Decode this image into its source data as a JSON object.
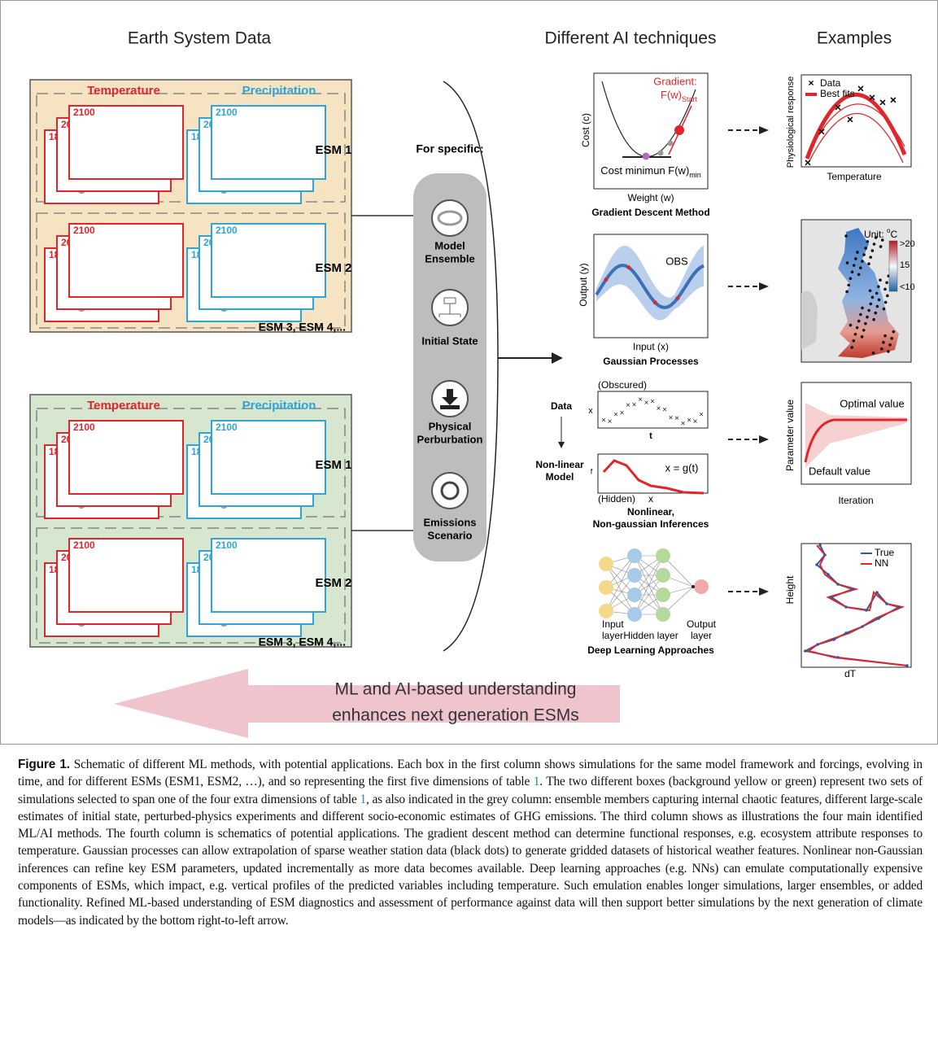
{
  "column_titles": [
    "Earth System Data",
    "Different AI techniques",
    "Examples"
  ],
  "data_boxes": [
    {
      "variables": [
        "Temperature",
        "Precipitation"
      ],
      "rows": [
        {
          "esm": "ESM 1",
          "years": [
            [
              "2100",
              "2020",
              "1850"
            ],
            [
              "2100",
              "2020",
              "1850"
            ]
          ]
        },
        {
          "esm": "ESM 2",
          "years": [
            [
              "2100",
              "2020",
              "1850"
            ],
            [
              "2100",
              "2020",
              "1850"
            ]
          ]
        }
      ],
      "more": "ESM 3, ESM 4,..."
    },
    {
      "variables": [
        "Temperature",
        "Precipitation"
      ],
      "rows": [
        {
          "esm": "ESM 1",
          "years": [
            [
              "2100",
              "2020",
              "1850"
            ],
            [
              "2100",
              "2020",
              "1850"
            ]
          ]
        },
        {
          "esm": "ESM 2",
          "years": [
            [
              "2100",
              "2020",
              "1850"
            ],
            [
              "2100",
              "2020",
              "1850"
            ]
          ]
        }
      ],
      "more": "ESM 3, ESM 4,..."
    }
  ],
  "for_specific": "For specific:",
  "factors": [
    [
      "Model",
      "Ensemble"
    ],
    [
      "Initial State"
    ],
    [
      "Physical",
      "Perburbation"
    ],
    [
      "Emissions",
      "Scenario"
    ]
  ],
  "gradient_descent": {
    "annotation": "Gradient:",
    "start": "F(w)",
    "start_sub": "Start",
    "y_label": "Cost (c)",
    "x_label": "Weight (w)",
    "minimum": "Cost minimun F(w)",
    "minimum_sub": "min",
    "title": "Gradient Descent Method"
  },
  "gaussian_processes": {
    "annotation": "OBS",
    "y_label": "Output (y)",
    "x_label": "Input (x)",
    "title": "Gaussian Processes"
  },
  "nonlinear_inferences": {
    "data_label": "Data",
    "obscured": "(Obscured)",
    "data_y": "x",
    "data_x": "t",
    "model_label": [
      "Non-linear",
      "Model"
    ],
    "equation": "x = g(t)",
    "model_y": "f",
    "hidden": "(Hidden)",
    "model_x": "x",
    "title": [
      "Nonlinear,",
      "Non-gaussian Inferences"
    ]
  },
  "deep_learning": {
    "layers": [
      [
        "Input",
        "layer"
      ],
      [
        "Hidden layer"
      ],
      [
        "Output",
        "layer"
      ]
    ],
    "title": "Deep Learning Approaches"
  },
  "examples": [
    {
      "legend": [
        "Data",
        "Best fits"
      ],
      "y_label": "Physiological response",
      "x_label": "Temperature"
    },
    {
      "unit": "Unit: ",
      "unit_sup": "o",
      "unit_rest": "C",
      "scale": [
        ">20",
        "15",
        "<10"
      ]
    },
    {
      "optimal": "Optimal value",
      "default": "Default value",
      "y_label": "Parameter value",
      "x_label": "Iteration"
    },
    {
      "legend": [
        "True",
        "NN"
      ],
      "y_label": "Height",
      "x_label": "dT"
    }
  ],
  "feedback_arrow": [
    "ML and AI-based understanding",
    "enhances next generation ESMs"
  ],
  "caption": {
    "label": "Figure 1.",
    "parts": [
      " Schematic of different ML methods, with potential applications. Each box in the first column shows simulations for the same model framework and forcings, evolving in time, and for different ESMs (ESM1, ESM2, …), and so representing the first five dimensions of table ",
      "1",
      ". The two different boxes (background yellow or green) represent two sets of simulations selected to span one of the four extra dimensions of table ",
      "1",
      ", as also indicated in the grey column: ensemble members capturing internal chaotic features, different large-scale estimates of initial state, perturbed-physics experiments and different socio-economic estimates of GHG emissions. The third column shows as illustrations the four main identified ML/AI methods. The fourth column is schematics of potential applications. The gradient descent method can determine functional responses, e.g. ecosystem attribute responses to temperature. Gaussian processes can allow extrapolation of sparse weather station data (black dots) to generate gridded datasets of historical weather features. Nonlinear non-Gaussian inferences can refine key ESM parameters, updated incrementally as more data becomes available. Deep learning approaches (e.g. NNs) can emulate computationally expensive components of ESMs, which impact, e.g. vertical profiles of the predicted variables including temperature. Such emulation enables longer simulations, larger ensembles, or added functionality. Refined ML-based understanding of ESM diagnostics and assessment of performance against data will then support better simulations by the next generation of climate models—as indicated by the bottom right-to-left arrow."
    ]
  }
}
